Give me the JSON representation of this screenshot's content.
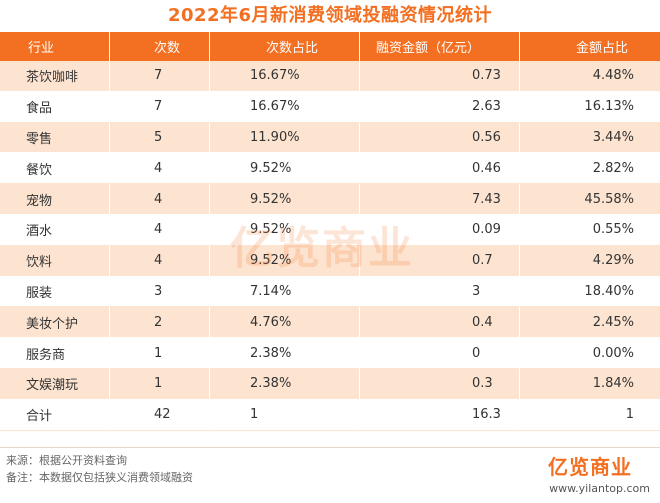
{
  "title": "2022年6月新消费领域投融资情况统计",
  "columns": [
    "行业",
    "次数",
    "次数占比",
    "融资金额（亿元）",
    "金额占比"
  ],
  "rows": [
    [
      "茶饮咖啡",
      "7",
      "16.67%",
      "0.73",
      "4.48%"
    ],
    [
      "食品",
      "7",
      "16.67%",
      "2.63",
      "16.13%"
    ],
    [
      "零售",
      "5",
      "11.90%",
      "0.56",
      "3.44%"
    ],
    [
      "餐饮",
      "4",
      "9.52%",
      "0.46",
      "2.82%"
    ],
    [
      "宠物",
      "4",
      "9.52%",
      "7.43",
      "45.58%"
    ],
    [
      "酒水",
      "4",
      "9.52%",
      "0.09",
      "0.55%"
    ],
    [
      "饮料",
      "4",
      "9.52%",
      "0.7",
      "4.29%"
    ],
    [
      "服装",
      "3",
      "7.14%",
      "3",
      "18.40%"
    ],
    [
      "美妆个护",
      "2",
      "4.76%",
      "0.4",
      "2.45%"
    ],
    [
      "服务商",
      "1",
      "2.38%",
      "0",
      "0.00%"
    ],
    [
      "文娱潮玩",
      "1",
      "2.38%",
      "0.3",
      "1.84%"
    ],
    [
      "合计",
      "42",
      "1",
      "16.3",
      "1"
    ]
  ],
  "notes": {
    "source": "来源：根据公开资料查询",
    "remark": "备注：本数据仅包括狭义消费领域融资"
  },
  "watermark": "亿览商业",
  "brand": {
    "logo_text": "亿览商业",
    "url": "www.yilantop.com"
  },
  "colors": {
    "accent": "#f36f21",
    "stripe": "#fde4d1"
  }
}
